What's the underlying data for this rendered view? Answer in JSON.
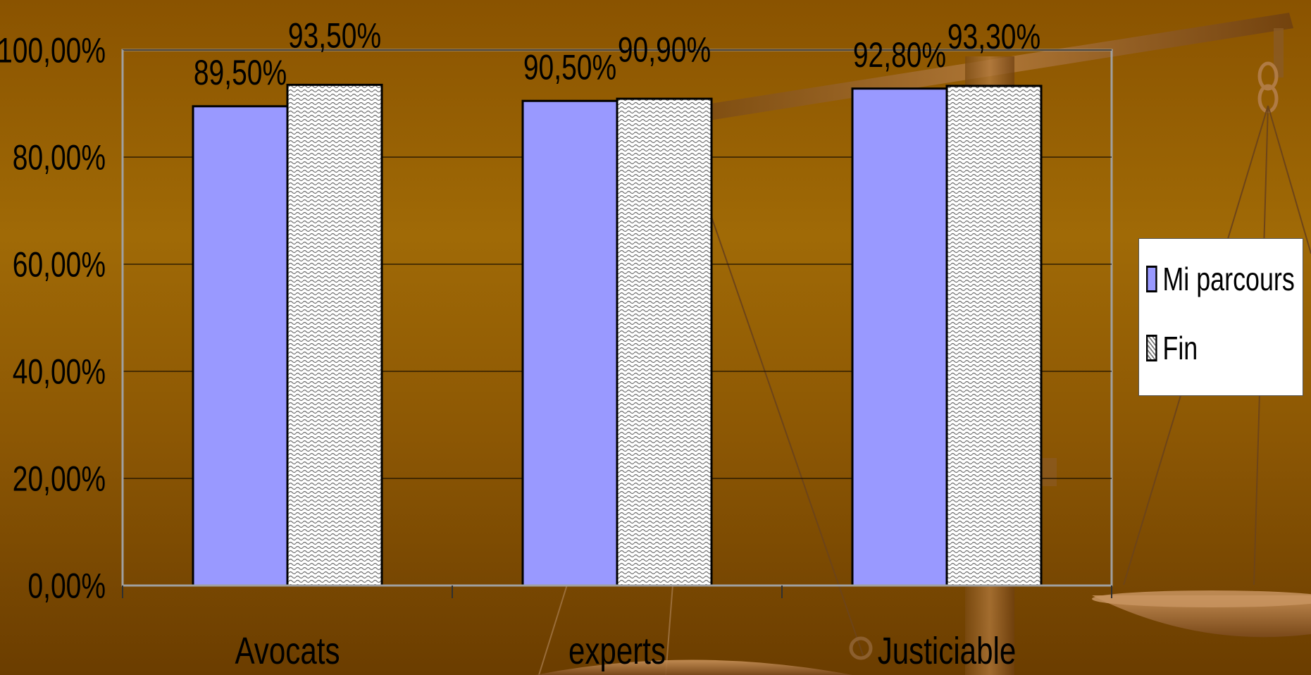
{
  "colors": {
    "series_mi": "#9999ff",
    "series_fin_bg": "#ffffff",
    "series_fin_pattern": "#6e6e6e",
    "background": "#8a5300"
  },
  "legend": {
    "items": [
      {
        "label": "Mi parcours",
        "swatch": "solid"
      },
      {
        "label": "Fin",
        "swatch": "pattern"
      }
    ]
  },
  "chart_data": {
    "type": "bar",
    "categories": [
      "Avocats",
      "experts",
      "Justiciable"
    ],
    "series": [
      {
        "name": "Mi parcours",
        "values": [
          89.5,
          90.5,
          92.8
        ],
        "labels": [
          "89,50%",
          "90,50%",
          "92,80%"
        ]
      },
      {
        "name": "Fin",
        "values": [
          93.5,
          90.9,
          93.3
        ],
        "labels": [
          "93,50%",
          "90,90%",
          "93,30%"
        ]
      }
    ],
    "ylim": [
      0,
      100
    ],
    "yticks": [
      "0,00%",
      "20,00%",
      "40,00%",
      "60,00%",
      "80,00%",
      "100,00%"
    ],
    "ytick_values": [
      0,
      20,
      40,
      60,
      80,
      100
    ],
    "title": "",
    "xlabel": "",
    "ylabel": "",
    "grid": true,
    "legend_position": "right"
  }
}
